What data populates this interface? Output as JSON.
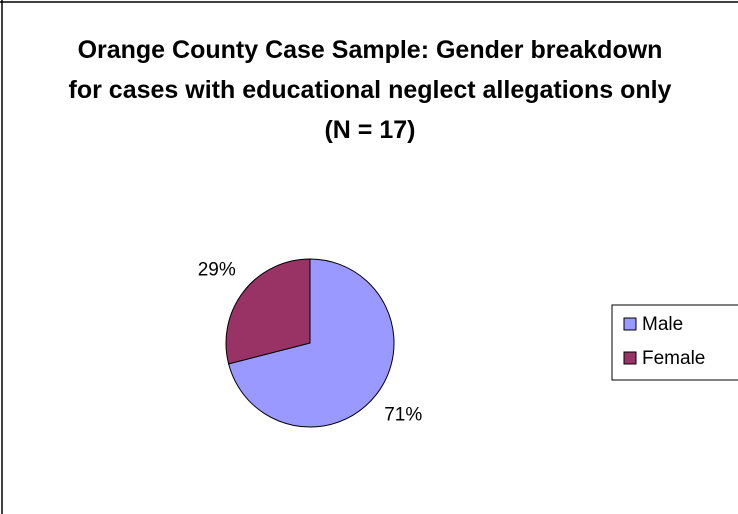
{
  "chart_data": {
    "type": "pie",
    "title": "Orange County Case Sample: Gender breakdown for cases with educational neglect allegations only (N = 17)",
    "categories": [
      "Male",
      "Female"
    ],
    "values": [
      71,
      29
    ],
    "value_labels": [
      "71%",
      "29%"
    ],
    "colors": [
      "#9999ff",
      "#993366"
    ],
    "legend": "right"
  }
}
